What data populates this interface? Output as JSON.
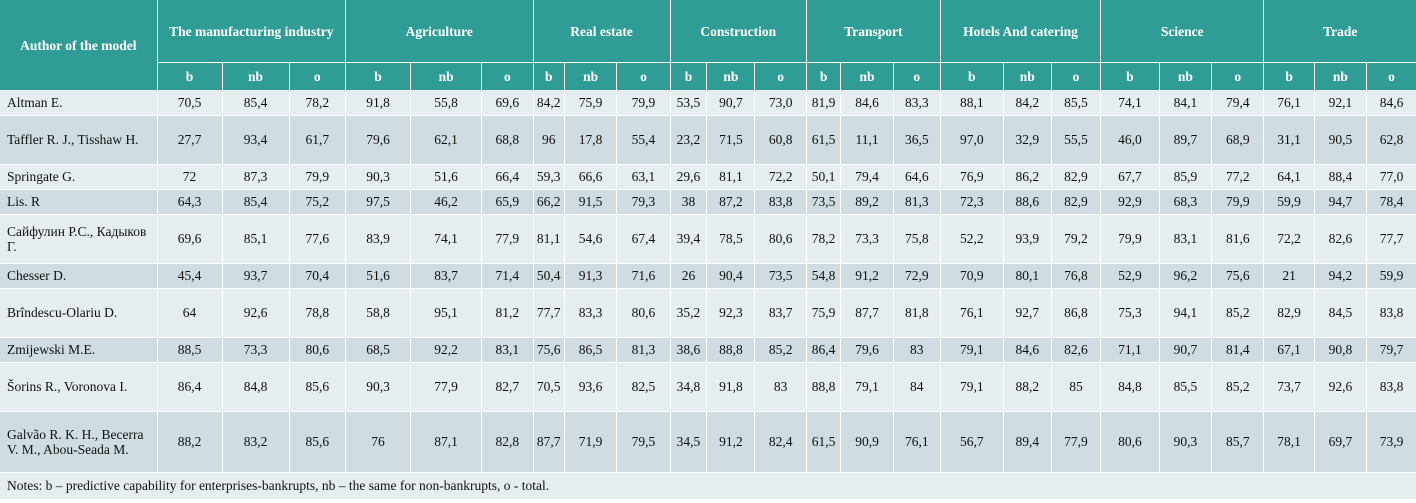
{
  "header": {
    "author": "Author of the model",
    "sectors": [
      {
        "label": "The manufacturing industry"
      },
      {
        "label": "Agriculture"
      },
      {
        "label": "Real estate"
      },
      {
        "label": "Construction"
      },
      {
        "label": "Transport"
      },
      {
        "label": "Hotels And catering"
      },
      {
        "label": "Science"
      },
      {
        "label": "Trade"
      }
    ],
    "sub": [
      "b",
      "nb",
      "o"
    ]
  },
  "rows": [
    {
      "author": "Altman E.",
      "values": [
        "70,5",
        "85,4",
        "78,2",
        "91,8",
        "55,8",
        "69,6",
        "84,2",
        "75,9",
        "79,9",
        "53,5",
        "90,7",
        "73,0",
        "81,9",
        "84,6",
        "83,3",
        "88,1",
        "84,2",
        "85,5",
        "74,1",
        "84,1",
        "79,4",
        "76,1",
        "92,1",
        "84,6"
      ]
    },
    {
      "author": "Taffler R. J., Tisshaw H.",
      "values": [
        "27,7",
        "93,4",
        "61,7",
        "79,6",
        "62,1",
        "68,8",
        "96",
        "17,8",
        "55,4",
        "23,2",
        "71,5",
        "60,8",
        "61,5",
        "11,1",
        "36,5",
        "97,0",
        "32,9",
        "55,5",
        "46,0",
        "89,7",
        "68,9",
        "31,1",
        "90,5",
        "62,8"
      ]
    },
    {
      "author": "Springate G.",
      "values": [
        "72",
        "87,3",
        "79,9",
        "90,3",
        "51,6",
        "66,4",
        "59,3",
        "66,6",
        "63,1",
        "29,6",
        "81,1",
        "72,2",
        "50,1",
        "79,4",
        "64,6",
        "76,9",
        "86,2",
        "82,9",
        "67,7",
        "85,9",
        "77,2",
        "64,1",
        "88,4",
        "77,0"
      ]
    },
    {
      "author": "Lis. R",
      "values": [
        "64,3",
        "85,4",
        "75,2",
        "97,5",
        "46,2",
        "65,9",
        "66,2",
        "91,5",
        "79,3",
        "38",
        "87,2",
        "83,8",
        "73,5",
        "89,2",
        "81,3",
        "72,3",
        "88,6",
        "82,9",
        "92,9",
        "68,3",
        "79,9",
        "59,9",
        "94,7",
        "78,4"
      ]
    },
    {
      "author": "Сайфулин Р.С., Кадыков Г.",
      "values": [
        "69,6",
        "85,1",
        "77,6",
        "83,9",
        "74,1",
        "77,9",
        "81,1",
        "54,6",
        "67,4",
        "39,4",
        "78,5",
        "80,6",
        "78,2",
        "73,3",
        "75,8",
        "52,2",
        "93,9",
        "79,2",
        "79,9",
        "83,1",
        "81,6",
        "72,2",
        "82,6",
        "77,7"
      ]
    },
    {
      "author": "Chesser D.",
      "values": [
        "45,4",
        "93,7",
        "70,4",
        "51,6",
        "83,7",
        "71,4",
        "50,4",
        "91,3",
        "71,6",
        "26",
        "90,4",
        "73,5",
        "54,8",
        "91,2",
        "72,9",
        "70,9",
        "80,1",
        "76,8",
        "52,9",
        "96,2",
        "75,6",
        "21",
        "94,2",
        "59,9"
      ]
    },
    {
      "author": "Brîndescu-Olariu D.",
      "values": [
        "64",
        "92,6",
        "78,8",
        "58,8",
        "95,1",
        "81,2",
        "77,7",
        "83,3",
        "80,6",
        "35,2",
        "92,3",
        "83,7",
        "75,9",
        "87,7",
        "81,8",
        "76,1",
        "92,7",
        "86,8",
        "75,3",
        "94,1",
        "85,2",
        "82,9",
        "84,5",
        "83,8"
      ]
    },
    {
      "author": "Zmijewski M.E.",
      "values": [
        "88,5",
        "73,3",
        "80,6",
        "68,5",
        "92,2",
        "83,1",
        "75,6",
        "86,5",
        "81,3",
        "38,6",
        "88,8",
        "85,2",
        "86,4",
        "79,6",
        "83",
        "79,1",
        "84,6",
        "82,6",
        "71,1",
        "90,7",
        "81,4",
        "67,1",
        "90,8",
        "79,7"
      ]
    },
    {
      "author": "Šorins R., Voronova I.",
      "values": [
        "86,4",
        "84,8",
        "85,6",
        "90,3",
        "77,9",
        "82,7",
        "70,5",
        "93,6",
        "82,5",
        "34,8",
        "91,8",
        "83",
        "88,8",
        "79,1",
        "84",
        "79,1",
        "88,2",
        "85",
        "84,8",
        "85,5",
        "85,2",
        "73,7",
        "92,6",
        "83,8"
      ]
    },
    {
      "author": "Galvão R. K. H., Becerra V. M., Abou-Seada M.",
      "values": [
        "88,2",
        "83,2",
        "85,6",
        "76",
        "87,1",
        "82,8",
        "87,7",
        "71,9",
        "79,5",
        "34,5",
        "91,2",
        "82,4",
        "61,5",
        "90,9",
        "76,1",
        "56,7",
        "89,4",
        "77,9",
        "80,6",
        "90,3",
        "85,7",
        "78,1",
        "69,7",
        "73,9"
      ]
    }
  ],
  "notes": "Notes: b – predictive capability for enterprises-bankrupts, nb – the same for non-bankrupts, o - total."
}
